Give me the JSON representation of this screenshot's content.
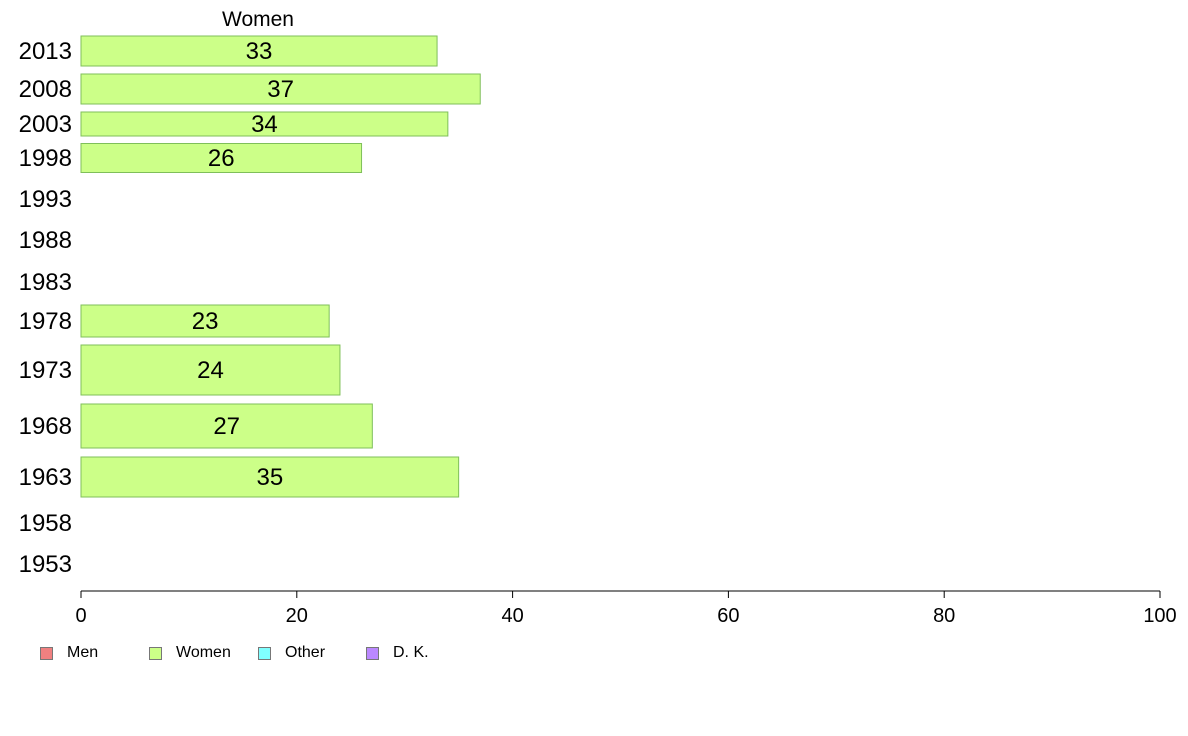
{
  "chart_data": {
    "type": "bar",
    "orientation": "horizontal",
    "title": "Women",
    "categories": [
      "2013",
      "2008",
      "2003",
      "1998",
      "1993",
      "1988",
      "1983",
      "1978",
      "1973",
      "1968",
      "1963",
      "1958",
      "1953"
    ],
    "series": [
      {
        "name": "Women",
        "color": "#ccff88",
        "values": [
          33,
          37,
          34,
          26,
          null,
          null,
          null,
          23,
          24,
          27,
          35,
          null,
          null
        ]
      }
    ],
    "xlim": [
      0,
      100
    ],
    "xticks": [
      0,
      20,
      40,
      60,
      80,
      100
    ],
    "grid": false,
    "legend_position": "bottom-left"
  },
  "legend": {
    "items": [
      {
        "label": "Men",
        "color": "#f08080"
      },
      {
        "label": "Women",
        "color": "#ccff88"
      },
      {
        "label": "Other",
        "color": "#80ffff"
      },
      {
        "label": "D. K.",
        "color": "#bb88ff"
      }
    ]
  }
}
